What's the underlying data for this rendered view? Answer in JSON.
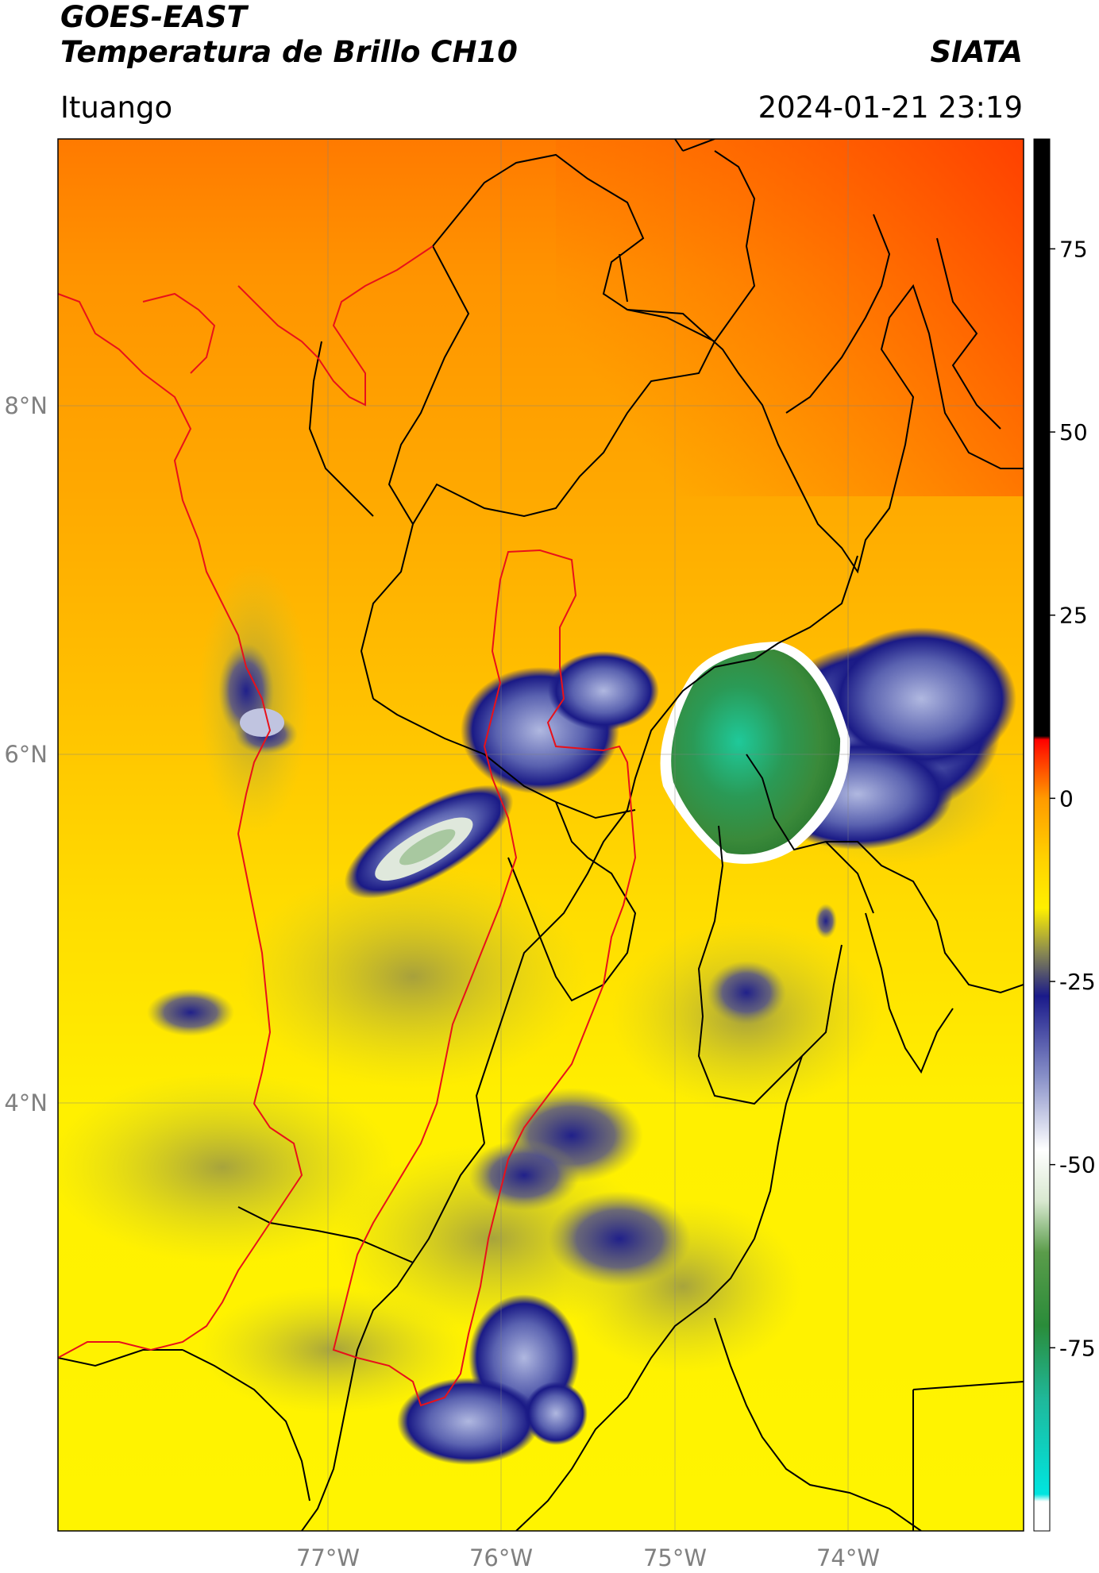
{
  "header": {
    "satellite": "GOES-EAST",
    "product": "Temperatura de Brillo CH10",
    "organization": "SIATA",
    "location": "Ituango",
    "timestamp": "2024-01-21 23:19"
  },
  "map": {
    "lon_range": [
      -78.55,
      -72.99
    ],
    "lat_range": [
      1.05,
      9.53
    ],
    "lon_ticks": [
      {
        "value": -77,
        "label": "77°W"
      },
      {
        "value": -76,
        "label": "76°W"
      },
      {
        "value": -75,
        "label": "75°W"
      },
      {
        "value": -74,
        "label": "74°W"
      }
    ],
    "lat_ticks": [
      {
        "value": 8,
        "label": "8°N"
      },
      {
        "value": 6,
        "label": "6°N"
      },
      {
        "value": 4,
        "label": "4°N"
      }
    ],
    "grid": true,
    "boundary_colors": {
      "departments": "#000000",
      "coast_and_basin": "#e8111a"
    }
  },
  "colorbar": {
    "range": [
      -100,
      90
    ],
    "ticks": [
      {
        "value": 75,
        "label": "75"
      },
      {
        "value": 50,
        "label": "50"
      },
      {
        "value": 25,
        "label": "25"
      },
      {
        "value": 0,
        "label": "0"
      },
      {
        "value": -25,
        "label": "-25"
      },
      {
        "value": -50,
        "label": "-50"
      },
      {
        "value": -75,
        "label": "-75"
      }
    ],
    "stops": [
      {
        "value": -100,
        "color": "#ffffff"
      },
      {
        "value": -96,
        "color": "#ffffff"
      },
      {
        "value": -95,
        "color": "#00e5e0"
      },
      {
        "value": -82,
        "color": "#1fb89a"
      },
      {
        "value": -72,
        "color": "#2a8c3a"
      },
      {
        "value": -62,
        "color": "#5a9c4a"
      },
      {
        "value": -55,
        "color": "#d8e8d0"
      },
      {
        "value": -48,
        "color": "#ffffff"
      },
      {
        "value": -38,
        "color": "#8890c8"
      },
      {
        "value": -27,
        "color": "#1a1a8a"
      },
      {
        "value": -21,
        "color": "#8a8a50"
      },
      {
        "value": -15,
        "color": "#fff000"
      },
      {
        "value": -8,
        "color": "#ffd000"
      },
      {
        "value": 0,
        "color": "#ff9a00"
      },
      {
        "value": 6,
        "color": "#ff2a00"
      },
      {
        "value": 8,
        "color": "#ff0000"
      },
      {
        "value": 8.5,
        "color": "#000000"
      },
      {
        "value": 90,
        "color": "#000000"
      }
    ]
  }
}
